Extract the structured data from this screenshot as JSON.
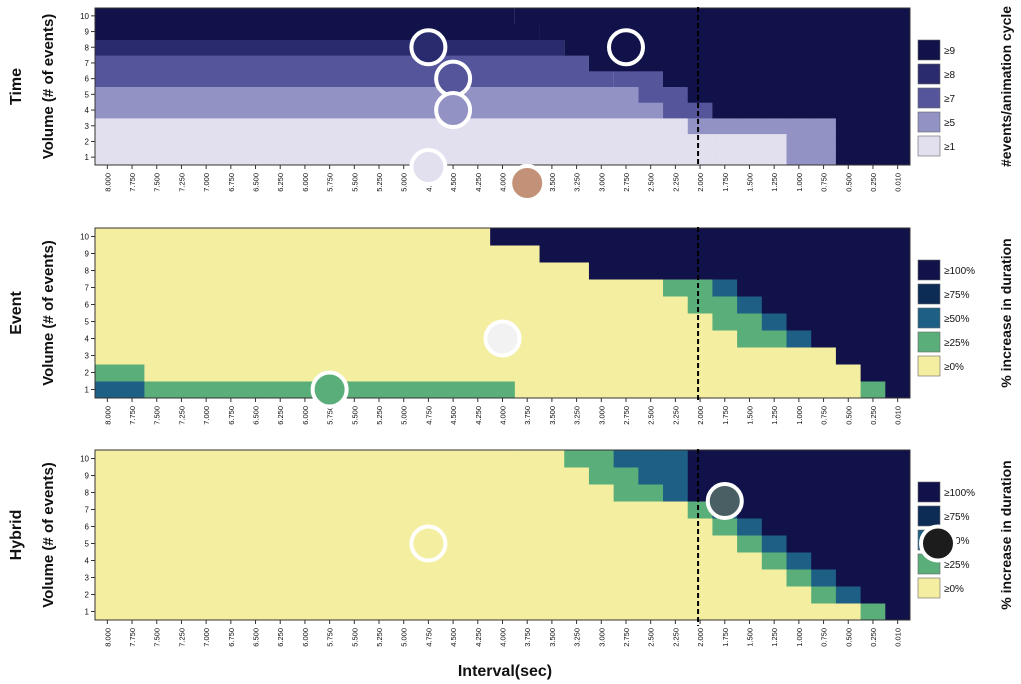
{
  "colors": {
    "navy": "#12124a",
    "purple_dark": "#2a2a6e",
    "purple_mid": "#55559b",
    "purple_light": "#9292c4",
    "lavender": "#e2e0ef",
    "yellow": "#f3eea0",
    "green": "#5aae7a",
    "teal": "#1e5f86",
    "blue_dark": "#0c2b55",
    "tan": "#c39177"
  },
  "axis": {
    "xlabel": "Interval(sec)",
    "ylabel": "Volume (# of events)",
    "x_ticks": [
      "8.000",
      "7.750",
      "7.500",
      "7.250",
      "7.000",
      "6.750",
      "6.500",
      "6.250",
      "6.000",
      "5.750",
      "5.500",
      "5.250",
      "5.000",
      "4.750",
      "4.500",
      "4.250",
      "4.000",
      "3.750",
      "3.500",
      "3.250",
      "3.000",
      "2.750",
      "2.500",
      "2.250",
      "2.000",
      "1.750",
      "1.500",
      "1.250",
      "1.000",
      "0.750",
      "0.500",
      "0.250",
      "0.010"
    ],
    "y_ticks": [
      "1",
      "2",
      "3",
      "4",
      "5",
      "6",
      "7",
      "8",
      "9",
      "10"
    ]
  },
  "chart_data": [
    {
      "type": "heatmap",
      "panel_label": "Time",
      "ylabel": "Volume (# of events)",
      "xlabel": "",
      "x": [
        "8.000",
        "7.750",
        "7.500",
        "7.250",
        "7.000",
        "6.750",
        "6.500",
        "6.250",
        "6.000",
        "5.750",
        "5.500",
        "5.250",
        "5.000",
        "4.750",
        "4.500",
        "4.250",
        "4.000",
        "3.750",
        "3.500",
        "3.250",
        "3.000",
        "2.750",
        "2.500",
        "2.250",
        "2.000",
        "1.750",
        "1.500",
        "1.250",
        "1.000",
        "0.750",
        "0.500",
        "0.250",
        "0.010"
      ],
      "y": [
        1,
        2,
        3,
        4,
        5,
        6,
        7,
        8,
        9,
        10
      ],
      "reference_line_x": "2.000",
      "legend_title": "#events/animation cycle",
      "legend": [
        {
          "label": "≥9",
          "color": "#12124a"
        },
        {
          "label": "≥8",
          "color": "#2a2a6e"
        },
        {
          "label": "≥7",
          "color": "#55559b"
        },
        {
          "label": "≥5",
          "color": "#9292c4"
        },
        {
          "label": "≥1",
          "color": "#e2e0ef"
        }
      ],
      "row_boundaries": [
        25,
        25,
        24,
        23,
        22,
        21,
        20,
        19,
        18,
        17
      ],
      "markers": [
        {
          "x": "4.750",
          "y": 8,
          "color": "#2a2a6e"
        },
        {
          "x": "2.750",
          "y": 8,
          "color": "#12124a"
        },
        {
          "x": "4.500",
          "y": 6,
          "color": "#55559b"
        },
        {
          "x": "4.500",
          "y": 4,
          "color": "#9292c4"
        },
        {
          "x": "4.750",
          "y": 0.5,
          "color": "#e2e0ef"
        },
        {
          "x": "3.750",
          "y": 0,
          "color": "#c39177"
        }
      ]
    },
    {
      "type": "heatmap",
      "panel_label": "Event",
      "ylabel": "Volume (# of events)",
      "xlabel": "",
      "x": [
        "8.000",
        "7.750",
        "7.500",
        "7.250",
        "7.000",
        "6.750",
        "6.500",
        "6.250",
        "6.000",
        "5.750",
        "5.500",
        "5.250",
        "5.000",
        "4.750",
        "4.500",
        "4.250",
        "4.000",
        "3.750",
        "3.500",
        "3.250",
        "3.000",
        "2.750",
        "2.500",
        "2.250",
        "2.000",
        "1.750",
        "1.500",
        "1.250",
        "1.000",
        "0.750",
        "0.500",
        "0.250",
        "0.010"
      ],
      "y": [
        1,
        2,
        3,
        4,
        5,
        6,
        7,
        8,
        9,
        10
      ],
      "reference_line_x": "2.000",
      "legend_title": "% increase in duration",
      "legend": [
        {
          "label": "≥100%",
          "color": "#12124a"
        },
        {
          "label": "≥75%",
          "color": "#0c2b55"
        },
        {
          "label": "≥50%",
          "color": "#1e5f86"
        },
        {
          "label": "≥25%",
          "color": "#5aae7a"
        },
        {
          "label": "≥0%",
          "color": "#f3eea0"
        }
      ],
      "markers": [
        {
          "x": "4.000",
          "y": 4,
          "color": "#f2f2f2"
        },
        {
          "x": "5.750",
          "y": 1,
          "color": "#5aae7a"
        }
      ]
    },
    {
      "type": "heatmap",
      "panel_label": "Hybrid",
      "ylabel": "Volume (# of events)",
      "xlabel": "Interval(sec)",
      "x": [
        "8.000",
        "7.750",
        "7.500",
        "7.250",
        "7.000",
        "6.750",
        "6.500",
        "6.250",
        "6.000",
        "5.750",
        "5.500",
        "5.250",
        "5.000",
        "4.750",
        "4.500",
        "4.250",
        "4.000",
        "3.750",
        "3.500",
        "3.250",
        "3.000",
        "2.750",
        "2.500",
        "2.250",
        "2.000",
        "1.750",
        "1.500",
        "1.250",
        "1.000",
        "0.750",
        "0.500",
        "0.250",
        "0.010"
      ],
      "y": [
        1,
        2,
        3,
        4,
        5,
        6,
        7,
        8,
        9,
        10
      ],
      "reference_line_x": "2.000",
      "legend_title": "% increase in duration",
      "legend": [
        {
          "label": "≥100%",
          "color": "#12124a"
        },
        {
          "label": "≥75%",
          "color": "#0c2b55"
        },
        {
          "label": "≥50%",
          "color": "#1e5f86"
        },
        {
          "label": "≥25%",
          "color": "#5aae7a"
        },
        {
          "label": "≥0%",
          "color": "#f3eea0"
        }
      ],
      "markers": [
        {
          "x": "1.750",
          "y": 7.5,
          "color": "#4a5f64"
        },
        {
          "x": "4.750",
          "y": 5,
          "color": "#f3eea0"
        },
        {
          "x": "legend",
          "y": 5,
          "color": "#1c1c1c"
        }
      ]
    }
  ]
}
